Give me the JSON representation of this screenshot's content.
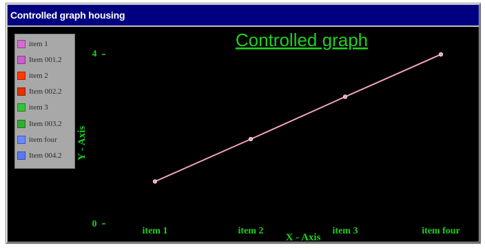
{
  "window": {
    "title": "Controlled graph housing",
    "titlebar_color": "#000080",
    "client_background": "#000000"
  },
  "legend": {
    "items": [
      {
        "label": "item 1",
        "color": "#d46cd4"
      },
      {
        "label": "Item 001.2",
        "color": "#c95fc9"
      },
      {
        "label": "item 2",
        "color": "#ff3a00"
      },
      {
        "label": "Item 002.2",
        "color": "#e13300"
      },
      {
        "label": "item 3",
        "color": "#35c335"
      },
      {
        "label": "Item 003.2",
        "color": "#2fae2f"
      },
      {
        "label": "item four",
        "color": "#6b87ff"
      },
      {
        "label": "Item 004.2",
        "color": "#5a78f2"
      }
    ]
  },
  "chart_data": {
    "type": "line",
    "title": "Controlled graph",
    "xlabel": "X - Axis",
    "ylabel": "Y - Axis",
    "categories": [
      "item 1",
      "item 2",
      "item 3",
      "item four"
    ],
    "y_ticks": [
      0,
      4
    ],
    "ylim": [
      0,
      4
    ],
    "series": [
      {
        "values": [
          1,
          2,
          3,
          4
        ],
        "color": "#f3a3c7"
      }
    ],
    "grid": false,
    "legend_position": "top-left"
  }
}
